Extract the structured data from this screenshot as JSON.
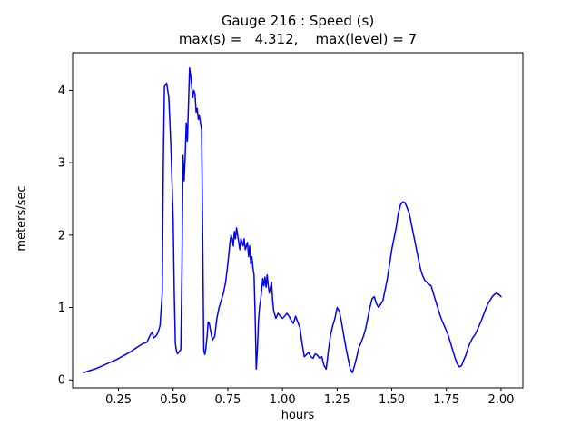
{
  "title_line1": "Gauge 216 : Speed (s)",
  "title_line2": "max(s) =   4.312,    max(level) = 7",
  "chart_data": {
    "type": "line",
    "title": "Gauge 216 : Speed (s)",
    "subtitle": "max(s) =   4.312,    max(level) = 7",
    "xlabel": "hours",
    "ylabel": "meters/sec",
    "xlim": [
      0.04,
      2.1
    ],
    "ylim": [
      -0.11,
      4.52
    ],
    "xticks": [
      0.25,
      0.5,
      0.75,
      1.0,
      1.25,
      1.5,
      1.75,
      2.0
    ],
    "xtick_labels": [
      "0.25",
      "0.50",
      "0.75",
      "1.00",
      "1.25",
      "1.50",
      "1.75",
      "2.00"
    ],
    "yticks": [
      0,
      1,
      2,
      3,
      4
    ],
    "ytick_labels": [
      "0",
      "1",
      "2",
      "3",
      "4"
    ],
    "grid": false,
    "legend": "none",
    "line_color": "#0000ff",
    "axis_color": "#000000",
    "max_s": 4.312,
    "max_level": 7,
    "series": [
      {
        "name": "speed",
        "points": [
          [
            0.09,
            0.1
          ],
          [
            0.12,
            0.13
          ],
          [
            0.15,
            0.16
          ],
          [
            0.18,
            0.2
          ],
          [
            0.21,
            0.24
          ],
          [
            0.24,
            0.28
          ],
          [
            0.27,
            0.33
          ],
          [
            0.3,
            0.38
          ],
          [
            0.33,
            0.44
          ],
          [
            0.36,
            0.5
          ],
          [
            0.38,
            0.52
          ],
          [
            0.395,
            0.62
          ],
          [
            0.405,
            0.66
          ],
          [
            0.41,
            0.58
          ],
          [
            0.42,
            0.6
          ],
          [
            0.43,
            0.65
          ],
          [
            0.44,
            0.75
          ],
          [
            0.45,
            1.2
          ],
          [
            0.455,
            3.0
          ],
          [
            0.46,
            4.05
          ],
          [
            0.47,
            4.1
          ],
          [
            0.48,
            3.9
          ],
          [
            0.49,
            3.2
          ],
          [
            0.5,
            2.2
          ],
          [
            0.505,
            1.2
          ],
          [
            0.51,
            0.5
          ],
          [
            0.515,
            0.4
          ],
          [
            0.52,
            0.36
          ],
          [
            0.53,
            0.4
          ],
          [
            0.535,
            0.42
          ],
          [
            0.54,
            1.5
          ],
          [
            0.545,
            3.1
          ],
          [
            0.55,
            2.75
          ],
          [
            0.555,
            3.1
          ],
          [
            0.56,
            3.55
          ],
          [
            0.565,
            3.3
          ],
          [
            0.57,
            3.8
          ],
          [
            0.575,
            4.31
          ],
          [
            0.58,
            4.2
          ],
          [
            0.585,
            4.05
          ],
          [
            0.59,
            3.9
          ],
          [
            0.595,
            4.0
          ],
          [
            0.6,
            3.95
          ],
          [
            0.605,
            3.7
          ],
          [
            0.61,
            3.75
          ],
          [
            0.615,
            3.6
          ],
          [
            0.62,
            3.65
          ],
          [
            0.625,
            3.55
          ],
          [
            0.63,
            3.45
          ],
          [
            0.635,
            2.0
          ],
          [
            0.64,
            0.4
          ],
          [
            0.645,
            0.35
          ],
          [
            0.65,
            0.45
          ],
          [
            0.655,
            0.6
          ],
          [
            0.66,
            0.8
          ],
          [
            0.665,
            0.78
          ],
          [
            0.67,
            0.7
          ],
          [
            0.675,
            0.62
          ],
          [
            0.68,
            0.55
          ],
          [
            0.69,
            0.6
          ],
          [
            0.7,
            0.85
          ],
          [
            0.71,
            1.0
          ],
          [
            0.72,
            1.1
          ],
          [
            0.73,
            1.2
          ],
          [
            0.74,
            1.35
          ],
          [
            0.75,
            1.6
          ],
          [
            0.76,
            1.9
          ],
          [
            0.765,
            2.0
          ],
          [
            0.77,
            1.95
          ],
          [
            0.775,
            1.85
          ],
          [
            0.78,
            2.05
          ],
          [
            0.785,
            1.95
          ],
          [
            0.79,
            2.1
          ],
          [
            0.8,
            1.9
          ],
          [
            0.805,
            1.8
          ],
          [
            0.81,
            1.95
          ],
          [
            0.82,
            1.85
          ],
          [
            0.825,
            1.95
          ],
          [
            0.83,
            1.8
          ],
          [
            0.84,
            1.9
          ],
          [
            0.845,
            1.7
          ],
          [
            0.85,
            1.85
          ],
          [
            0.855,
            1.6
          ],
          [
            0.86,
            1.7
          ],
          [
            0.865,
            1.55
          ],
          [
            0.87,
            1.45
          ],
          [
            0.875,
            0.9
          ],
          [
            0.88,
            0.15
          ],
          [
            0.885,
            0.4
          ],
          [
            0.89,
            0.8
          ],
          [
            0.895,
            1.0
          ],
          [
            0.9,
            1.1
          ],
          [
            0.91,
            1.4
          ],
          [
            0.915,
            1.3
          ],
          [
            0.92,
            1.42
          ],
          [
            0.925,
            1.28
          ],
          [
            0.93,
            1.45
          ],
          [
            0.935,
            1.3
          ],
          [
            0.94,
            1.2
          ],
          [
            0.95,
            1.35
          ],
          [
            0.955,
            1.1
          ],
          [
            0.96,
            0.95
          ],
          [
            0.97,
            0.85
          ],
          [
            0.98,
            0.92
          ],
          [
            0.99,
            0.88
          ],
          [
            1.0,
            0.85
          ],
          [
            1.01,
            0.88
          ],
          [
            1.02,
            0.92
          ],
          [
            1.03,
            0.88
          ],
          [
            1.04,
            0.82
          ],
          [
            1.05,
            0.78
          ],
          [
            1.06,
            0.88
          ],
          [
            1.07,
            0.8
          ],
          [
            1.08,
            0.72
          ],
          [
            1.09,
            0.5
          ],
          [
            1.1,
            0.32
          ],
          [
            1.11,
            0.35
          ],
          [
            1.12,
            0.38
          ],
          [
            1.13,
            0.32
          ],
          [
            1.14,
            0.3
          ],
          [
            1.15,
            0.36
          ],
          [
            1.16,
            0.34
          ],
          [
            1.17,
            0.3
          ],
          [
            1.18,
            0.32
          ],
          [
            1.19,
            0.2
          ],
          [
            1.2,
            0.15
          ],
          [
            1.21,
            0.4
          ],
          [
            1.22,
            0.62
          ],
          [
            1.23,
            0.75
          ],
          [
            1.24,
            0.85
          ],
          [
            1.25,
            1.0
          ],
          [
            1.26,
            0.95
          ],
          [
            1.27,
            0.8
          ],
          [
            1.28,
            0.62
          ],
          [
            1.29,
            0.45
          ],
          [
            1.3,
            0.3
          ],
          [
            1.31,
            0.15
          ],
          [
            1.32,
            0.1
          ],
          [
            1.33,
            0.2
          ],
          [
            1.34,
            0.32
          ],
          [
            1.35,
            0.45
          ],
          [
            1.36,
            0.52
          ],
          [
            1.37,
            0.6
          ],
          [
            1.38,
            0.7
          ],
          [
            1.39,
            0.85
          ],
          [
            1.4,
            1.0
          ],
          [
            1.41,
            1.12
          ],
          [
            1.42,
            1.15
          ],
          [
            1.43,
            1.05
          ],
          [
            1.44,
            1.0
          ],
          [
            1.45,
            1.05
          ],
          [
            1.46,
            1.1
          ],
          [
            1.47,
            1.25
          ],
          [
            1.48,
            1.4
          ],
          [
            1.49,
            1.6
          ],
          [
            1.5,
            1.8
          ],
          [
            1.51,
            1.95
          ],
          [
            1.52,
            2.1
          ],
          [
            1.53,
            2.3
          ],
          [
            1.54,
            2.42
          ],
          [
            1.55,
            2.46
          ],
          [
            1.56,
            2.45
          ],
          [
            1.57,
            2.38
          ],
          [
            1.58,
            2.3
          ],
          [
            1.59,
            2.15
          ],
          [
            1.6,
            2.0
          ],
          [
            1.61,
            1.85
          ],
          [
            1.62,
            1.7
          ],
          [
            1.63,
            1.55
          ],
          [
            1.64,
            1.45
          ],
          [
            1.65,
            1.38
          ],
          [
            1.66,
            1.35
          ],
          [
            1.67,
            1.32
          ],
          [
            1.68,
            1.3
          ],
          [
            1.69,
            1.2
          ],
          [
            1.7,
            1.1
          ],
          [
            1.71,
            1.0
          ],
          [
            1.72,
            0.9
          ],
          [
            1.73,
            0.82
          ],
          [
            1.74,
            0.75
          ],
          [
            1.75,
            0.68
          ],
          [
            1.76,
            0.6
          ],
          [
            1.77,
            0.5
          ],
          [
            1.78,
            0.4
          ],
          [
            1.79,
            0.3
          ],
          [
            1.8,
            0.22
          ],
          [
            1.81,
            0.18
          ],
          [
            1.82,
            0.2
          ],
          [
            1.83,
            0.28
          ],
          [
            1.84,
            0.35
          ],
          [
            1.85,
            0.45
          ],
          [
            1.86,
            0.52
          ],
          [
            1.87,
            0.58
          ],
          [
            1.88,
            0.62
          ],
          [
            1.89,
            0.68
          ],
          [
            1.9,
            0.75
          ],
          [
            1.91,
            0.82
          ],
          [
            1.92,
            0.9
          ],
          [
            1.93,
            0.98
          ],
          [
            1.94,
            1.05
          ],
          [
            1.95,
            1.1
          ],
          [
            1.96,
            1.15
          ],
          [
            1.97,
            1.18
          ],
          [
            1.98,
            1.2
          ],
          [
            1.99,
            1.18
          ],
          [
            2.0,
            1.15
          ]
        ]
      }
    ]
  }
}
